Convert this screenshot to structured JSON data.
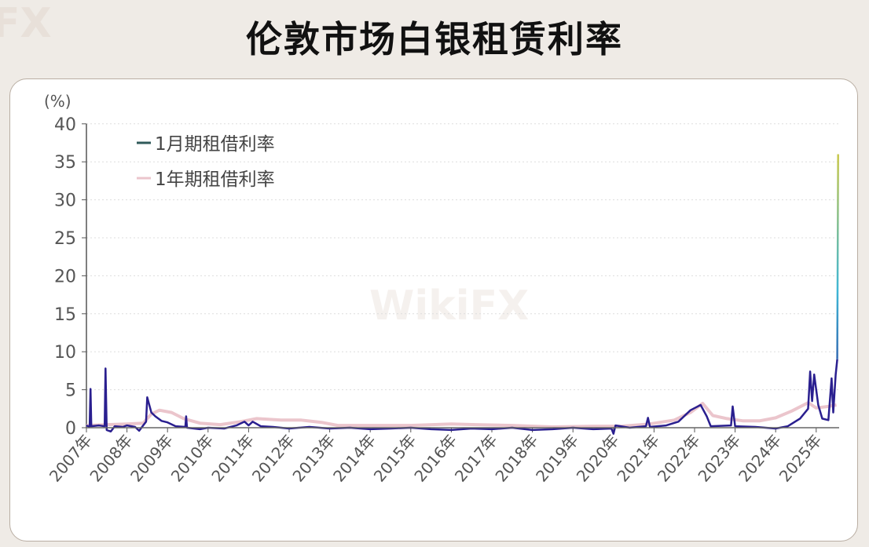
{
  "title": "伦敦市场白银租赁利率",
  "watermark": "WikiFX",
  "chart_data": {
    "type": "line",
    "title": "伦敦市场白银租赁利率",
    "ylabel": "(%)",
    "xlabel": "",
    "ylim": [
      0,
      40
    ],
    "xlim": [
      2007,
      2025.6
    ],
    "yticks": [
      0,
      5,
      10,
      15,
      20,
      25,
      30,
      35,
      40
    ],
    "xticks": [
      "2007年",
      "2008年",
      "2009年",
      "2010年",
      "2011年",
      "2012年",
      "2013年",
      "2014年",
      "2015年",
      "2016年",
      "2017年",
      "2018年",
      "2019年",
      "2020年",
      "2021年",
      "2022年",
      "2023年",
      "2024年",
      "2025年"
    ],
    "grid": "horizontal dotted",
    "legend_placement": "top-left",
    "series": [
      {
        "name": "1月期租借利率",
        "color": "#2a1f8f",
        "spike_gradient": [
          "#2a1f8f",
          "#3fb7d6",
          "#c9c84a"
        ],
        "points": [
          [
            2007.0,
            0.3
          ],
          [
            2007.08,
            0.1
          ],
          [
            2007.1,
            5.1
          ],
          [
            2007.12,
            0.2
          ],
          [
            2007.3,
            0.3
          ],
          [
            2007.45,
            0.2
          ],
          [
            2007.47,
            7.8
          ],
          [
            2007.5,
            -0.3
          ],
          [
            2007.6,
            -0.5
          ],
          [
            2007.7,
            0.2
          ],
          [
            2007.9,
            0.1
          ],
          [
            2008.0,
            0.3
          ],
          [
            2008.2,
            0.1
          ],
          [
            2008.3,
            -0.4
          ],
          [
            2008.4,
            0.3
          ],
          [
            2008.47,
            0.8
          ],
          [
            2008.5,
            4.0
          ],
          [
            2008.6,
            2.0
          ],
          [
            2008.7,
            1.5
          ],
          [
            2008.85,
            0.9
          ],
          [
            2009.0,
            0.7
          ],
          [
            2009.2,
            0.2
          ],
          [
            2009.44,
            0.1
          ],
          [
            2009.46,
            1.5
          ],
          [
            2009.48,
            0.0
          ],
          [
            2009.8,
            -0.2
          ],
          [
            2010.0,
            0.0
          ],
          [
            2010.4,
            -0.1
          ],
          [
            2010.7,
            0.3
          ],
          [
            2010.9,
            0.8
          ],
          [
            2011.0,
            0.3
          ],
          [
            2011.1,
            0.8
          ],
          [
            2011.3,
            0.2
          ],
          [
            2011.6,
            0.1
          ],
          [
            2012.0,
            -0.1
          ],
          [
            2012.5,
            0.1
          ],
          [
            2013.0,
            -0.1
          ],
          [
            2013.5,
            0.0
          ],
          [
            2014.0,
            -0.2
          ],
          [
            2014.5,
            -0.1
          ],
          [
            2015.0,
            0.0
          ],
          [
            2015.5,
            -0.2
          ],
          [
            2016.0,
            -0.3
          ],
          [
            2016.5,
            -0.1
          ],
          [
            2017.0,
            -0.2
          ],
          [
            2017.5,
            0.0
          ],
          [
            2018.0,
            -0.3
          ],
          [
            2018.5,
            -0.2
          ],
          [
            2019.0,
            0.0
          ],
          [
            2019.5,
            -0.2
          ],
          [
            2019.95,
            -0.1
          ],
          [
            2020.0,
            -0.8
          ],
          [
            2020.05,
            0.3
          ],
          [
            2020.4,
            0.0
          ],
          [
            2020.8,
            0.2
          ],
          [
            2020.85,
            1.3
          ],
          [
            2020.9,
            0.1
          ],
          [
            2021.3,
            0.3
          ],
          [
            2021.6,
            0.8
          ],
          [
            2021.9,
            2.3
          ],
          [
            2022.15,
            3.0
          ],
          [
            2022.3,
            1.5
          ],
          [
            2022.4,
            0.2
          ],
          [
            2022.9,
            0.3
          ],
          [
            2022.94,
            2.8
          ],
          [
            2023.0,
            0.2
          ],
          [
            2023.5,
            0.1
          ],
          [
            2024.0,
            -0.1
          ],
          [
            2024.3,
            0.2
          ],
          [
            2024.6,
            1.2
          ],
          [
            2024.8,
            2.5
          ],
          [
            2024.85,
            7.4
          ],
          [
            2024.9,
            3.5
          ],
          [
            2024.95,
            7.0
          ],
          [
            2025.05,
            3.0
          ],
          [
            2025.15,
            1.2
          ],
          [
            2025.3,
            1.0
          ],
          [
            2025.38,
            6.5
          ],
          [
            2025.42,
            2.0
          ],
          [
            2025.48,
            7.0
          ],
          [
            2025.52,
            9.0
          ],
          [
            2025.54,
            36.0
          ]
        ]
      },
      {
        "name": "1年期租借利率",
        "color": "#ebc5cc",
        "points": [
          [
            2007.0,
            0.3
          ],
          [
            2007.5,
            0.4
          ],
          [
            2008.0,
            0.5
          ],
          [
            2008.4,
            0.6
          ],
          [
            2008.6,
            1.8
          ],
          [
            2008.8,
            2.3
          ],
          [
            2009.1,
            2.0
          ],
          [
            2009.4,
            1.2
          ],
          [
            2009.8,
            0.6
          ],
          [
            2010.3,
            0.4
          ],
          [
            2010.8,
            0.8
          ],
          [
            2011.2,
            1.2
          ],
          [
            2011.8,
            1.0
          ],
          [
            2012.3,
            1.0
          ],
          [
            2012.8,
            0.7
          ],
          [
            2013.2,
            0.3
          ],
          [
            2014.0,
            0.3
          ],
          [
            2015.0,
            0.3
          ],
          [
            2016.0,
            0.5
          ],
          [
            2016.6,
            0.4
          ],
          [
            2017.5,
            0.3
          ],
          [
            2018.5,
            0.1
          ],
          [
            2019.5,
            0.2
          ],
          [
            2020.2,
            0.2
          ],
          [
            2020.9,
            0.5
          ],
          [
            2021.5,
            1.0
          ],
          [
            2021.9,
            2.0
          ],
          [
            2022.2,
            3.2
          ],
          [
            2022.45,
            1.6
          ],
          [
            2022.8,
            1.2
          ],
          [
            2023.2,
            0.9
          ],
          [
            2023.6,
            0.9
          ],
          [
            2024.0,
            1.3
          ],
          [
            2024.4,
            2.2
          ],
          [
            2024.8,
            3.3
          ],
          [
            2025.0,
            2.6
          ],
          [
            2025.3,
            2.8
          ],
          [
            2025.5,
            3.0
          ]
        ]
      }
    ]
  }
}
